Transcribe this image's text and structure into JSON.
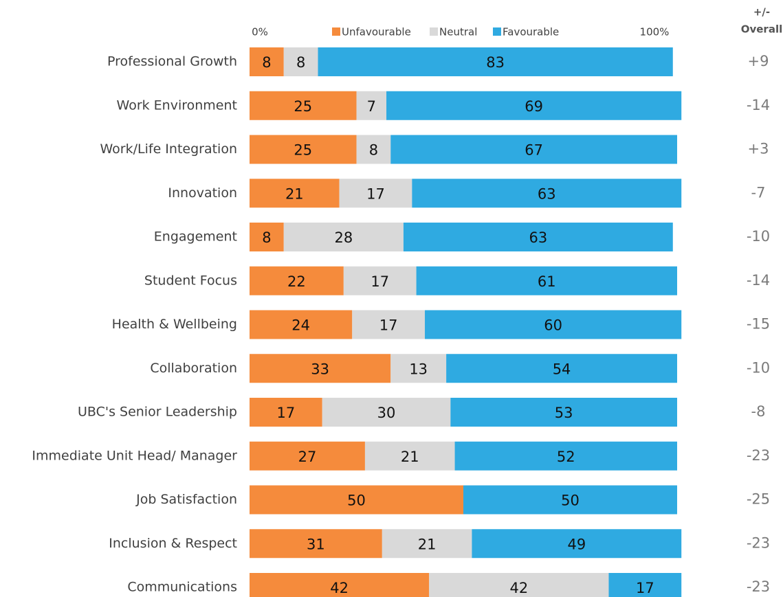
{
  "chart_data": {
    "type": "stacked_bar_h",
    "categories": [
      "Professional Growth",
      "Work Environment",
      "Work/Life Integration",
      "Innovation",
      "Engagement",
      "Student Focus",
      "Health & Wellbeing",
      "Collaboration",
      "UBC's Senior Leadership",
      "Immediate Unit Head/ Manager",
      "Job Satisfaction",
      "Inclusion & Respect",
      "Communications"
    ],
    "series": [
      {
        "name": "Unfavourable",
        "color": "#f58b3c",
        "values": [
          8,
          25,
          25,
          21,
          8,
          22,
          24,
          33,
          17,
          27,
          50,
          31,
          42
        ]
      },
      {
        "name": "Neutral",
        "color": "#d9d9d9",
        "values": [
          8,
          7,
          8,
          17,
          28,
          17,
          17,
          13,
          30,
          21,
          0,
          21,
          42
        ]
      },
      {
        "name": "Favourable",
        "color": "#2faae1",
        "values": [
          83,
          69,
          67,
          63,
          63,
          61,
          60,
          54,
          53,
          52,
          50,
          49,
          17
        ]
      }
    ],
    "xlim": [
      0,
      100
    ],
    "xticks": [
      {
        "value": 0,
        "label": "0%"
      },
      {
        "value": 100,
        "label": "100%"
      }
    ],
    "overall": {
      "header": [
        "+/-",
        "Overall"
      ],
      "values": [
        9,
        -14,
        3,
        -7,
        -10,
        -14,
        -15,
        -10,
        -8,
        -23,
        -25,
        -23,
        -23
      ],
      "value_labels": [
        "+9",
        "-14",
        "+3",
        "-7",
        "-10",
        "-14",
        "-15",
        "-10",
        "-8",
        "-23",
        "-25",
        "-23",
        "-23"
      ]
    }
  }
}
